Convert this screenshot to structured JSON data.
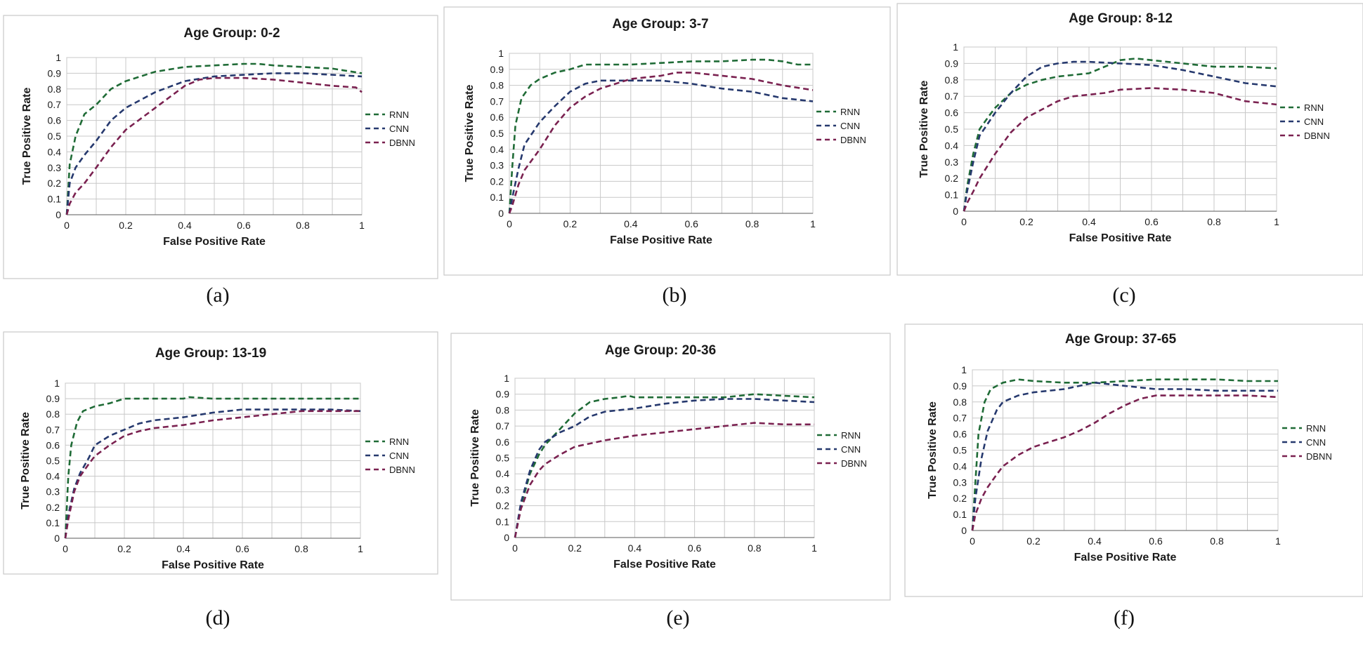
{
  "series_colors": {
    "RNN": "#1f6b36",
    "CNN": "#26396e",
    "DBNN": "#7a2150"
  },
  "chart_data": [
    {
      "type": "line",
      "caption": "(a)",
      "title": "Age Group: 0-2",
      "xlabel": "False Positive Rate",
      "ylabel": "True Positive Rate",
      "xlim": [
        0,
        1
      ],
      "ylim": [
        0,
        1
      ],
      "xticks": [
        "0",
        "0.2",
        "0.4",
        "0.6",
        "0.8",
        "1"
      ],
      "yticks": [
        "0",
        "0.1",
        "0.2",
        "0.3",
        "0.4",
        "0.5",
        "0.6",
        "0.7",
        "0.8",
        "0.9",
        "1"
      ],
      "grid": true,
      "legend": "right",
      "series": [
        {
          "name": "RNN",
          "x": [
            0,
            0.01,
            0.03,
            0.06,
            0.1,
            0.15,
            0.2,
            0.3,
            0.4,
            0.5,
            0.6,
            0.65,
            0.7,
            0.8,
            0.9,
            1.0
          ],
          "y": [
            0,
            0.32,
            0.5,
            0.64,
            0.7,
            0.8,
            0.85,
            0.91,
            0.94,
            0.95,
            0.96,
            0.96,
            0.95,
            0.94,
            0.93,
            0.9
          ]
        },
        {
          "name": "CNN",
          "x": [
            0,
            0.01,
            0.03,
            0.06,
            0.1,
            0.15,
            0.2,
            0.3,
            0.4,
            0.5,
            0.6,
            0.7,
            0.8,
            0.9,
            1.0
          ],
          "y": [
            0,
            0.2,
            0.3,
            0.38,
            0.47,
            0.6,
            0.68,
            0.78,
            0.85,
            0.88,
            0.89,
            0.9,
            0.9,
            0.89,
            0.88
          ]
        },
        {
          "name": "DBNN",
          "x": [
            0,
            0.01,
            0.03,
            0.06,
            0.1,
            0.15,
            0.2,
            0.3,
            0.4,
            0.45,
            0.5,
            0.6,
            0.7,
            0.8,
            0.9,
            0.98,
            1.0
          ],
          "y": [
            0,
            0.07,
            0.14,
            0.2,
            0.3,
            0.43,
            0.54,
            0.68,
            0.82,
            0.86,
            0.87,
            0.87,
            0.86,
            0.84,
            0.82,
            0.81,
            0.78
          ]
        }
      ]
    },
    {
      "type": "line",
      "caption": "(b)",
      "title": "Age Group: 3-7",
      "xlabel": "False Positive Rate",
      "ylabel": "True Positive Rate",
      "xlim": [
        0,
        1
      ],
      "ylim": [
        0,
        1
      ],
      "xticks": [
        "0",
        "0.2",
        "0.4",
        "0.6",
        "0.8",
        "1"
      ],
      "yticks": [
        "0",
        "0.1",
        "0.2",
        "0.3",
        "0.4",
        "0.5",
        "0.6",
        "0.7",
        "0.8",
        "0.9",
        "1"
      ],
      "grid": true,
      "legend": "right",
      "series": [
        {
          "name": "RNN",
          "x": [
            0,
            0.01,
            0.02,
            0.04,
            0.07,
            0.1,
            0.15,
            0.2,
            0.25,
            0.3,
            0.4,
            0.5,
            0.6,
            0.7,
            0.8,
            0.85,
            0.9,
            0.95,
            1.0
          ],
          "y": [
            0,
            0.3,
            0.55,
            0.72,
            0.8,
            0.84,
            0.88,
            0.9,
            0.93,
            0.93,
            0.93,
            0.94,
            0.95,
            0.95,
            0.96,
            0.96,
            0.95,
            0.93,
            0.93
          ]
        },
        {
          "name": "CNN",
          "x": [
            0,
            0.01,
            0.03,
            0.05,
            0.1,
            0.15,
            0.2,
            0.25,
            0.3,
            0.4,
            0.5,
            0.6,
            0.7,
            0.8,
            0.9,
            1.0
          ],
          "y": [
            0,
            0.1,
            0.28,
            0.43,
            0.57,
            0.67,
            0.76,
            0.81,
            0.83,
            0.83,
            0.83,
            0.81,
            0.78,
            0.76,
            0.72,
            0.7
          ]
        },
        {
          "name": "DBNN",
          "x": [
            0,
            0.01,
            0.03,
            0.05,
            0.1,
            0.15,
            0.2,
            0.25,
            0.3,
            0.4,
            0.5,
            0.55,
            0.6,
            0.7,
            0.8,
            0.9,
            1.0
          ],
          "y": [
            0,
            0.05,
            0.18,
            0.27,
            0.4,
            0.55,
            0.66,
            0.73,
            0.78,
            0.84,
            0.86,
            0.88,
            0.88,
            0.86,
            0.84,
            0.8,
            0.77
          ]
        }
      ]
    },
    {
      "type": "line",
      "caption": "(c)",
      "title": "Age Group: 8-12",
      "xlabel": "False Positive Rate",
      "ylabel": "True Positive Rate",
      "xlim": [
        0,
        1
      ],
      "ylim": [
        0,
        1
      ],
      "xticks": [
        "0",
        "0.2",
        "0.4",
        "0.6",
        "0.8",
        "1"
      ],
      "yticks": [
        "0",
        "0.1",
        "0.2",
        "0.3",
        "0.4",
        "0.5",
        "0.6",
        "0.7",
        "0.8",
        "0.9",
        "1"
      ],
      "grid": true,
      "legend": "right",
      "series": [
        {
          "name": "RNN",
          "x": [
            0,
            0.01,
            0.03,
            0.05,
            0.08,
            0.1,
            0.15,
            0.2,
            0.25,
            0.3,
            0.4,
            0.45,
            0.5,
            0.55,
            0.6,
            0.7,
            0.8,
            0.9,
            1.0
          ],
          "y": [
            0,
            0.15,
            0.35,
            0.5,
            0.58,
            0.63,
            0.72,
            0.77,
            0.8,
            0.82,
            0.84,
            0.88,
            0.92,
            0.93,
            0.92,
            0.9,
            0.88,
            0.88,
            0.87
          ]
        },
        {
          "name": "CNN",
          "x": [
            0,
            0.01,
            0.03,
            0.05,
            0.1,
            0.15,
            0.2,
            0.25,
            0.3,
            0.35,
            0.4,
            0.5,
            0.6,
            0.7,
            0.8,
            0.9,
            1.0
          ],
          "y": [
            0,
            0.12,
            0.3,
            0.46,
            0.6,
            0.72,
            0.82,
            0.88,
            0.9,
            0.91,
            0.91,
            0.9,
            0.89,
            0.86,
            0.82,
            0.78,
            0.76
          ]
        },
        {
          "name": "DBNN",
          "x": [
            0,
            0.01,
            0.03,
            0.05,
            0.1,
            0.15,
            0.2,
            0.25,
            0.3,
            0.35,
            0.4,
            0.45,
            0.5,
            0.6,
            0.7,
            0.8,
            0.9,
            1.0
          ],
          "y": [
            0,
            0.05,
            0.12,
            0.2,
            0.35,
            0.48,
            0.57,
            0.62,
            0.67,
            0.7,
            0.71,
            0.72,
            0.74,
            0.75,
            0.74,
            0.72,
            0.67,
            0.65
          ]
        }
      ]
    },
    {
      "type": "line",
      "caption": "(d)",
      "title": "Age Group: 13-19",
      "xlabel": "False Positive Rate",
      "ylabel": "True Positive Rate",
      "xlim": [
        0,
        1
      ],
      "ylim": [
        0,
        1
      ],
      "xticks": [
        "0",
        "0.2",
        "0.4",
        "0.6",
        "0.8",
        "1"
      ],
      "yticks": [
        "0",
        "0.1",
        "0.2",
        "0.3",
        "0.4",
        "0.5",
        "0.6",
        "0.7",
        "0.8",
        "0.9",
        "1"
      ],
      "grid": true,
      "legend": "right",
      "series": [
        {
          "name": "RNN",
          "x": [
            0,
            0.01,
            0.02,
            0.04,
            0.06,
            0.1,
            0.15,
            0.2,
            0.25,
            0.3,
            0.4,
            0.42,
            0.5,
            0.6,
            0.7,
            0.8,
            0.9,
            1.0
          ],
          "y": [
            0,
            0.4,
            0.6,
            0.75,
            0.82,
            0.85,
            0.87,
            0.9,
            0.9,
            0.9,
            0.9,
            0.91,
            0.9,
            0.9,
            0.9,
            0.9,
            0.9,
            0.9
          ]
        },
        {
          "name": "CNN",
          "x": [
            0,
            0.01,
            0.03,
            0.05,
            0.08,
            0.1,
            0.15,
            0.2,
            0.25,
            0.3,
            0.4,
            0.5,
            0.6,
            0.7,
            0.8,
            0.9,
            1.0
          ],
          "y": [
            0,
            0.15,
            0.32,
            0.42,
            0.52,
            0.6,
            0.66,
            0.7,
            0.74,
            0.76,
            0.78,
            0.81,
            0.83,
            0.83,
            0.83,
            0.83,
            0.82
          ]
        },
        {
          "name": "DBNN",
          "x": [
            0,
            0.01,
            0.03,
            0.05,
            0.08,
            0.1,
            0.15,
            0.2,
            0.25,
            0.3,
            0.4,
            0.5,
            0.6,
            0.7,
            0.8,
            0.9,
            1.0
          ],
          "y": [
            0,
            0.12,
            0.3,
            0.4,
            0.48,
            0.53,
            0.6,
            0.66,
            0.69,
            0.71,
            0.73,
            0.76,
            0.78,
            0.8,
            0.82,
            0.82,
            0.82
          ]
        }
      ]
    },
    {
      "type": "line",
      "caption": "(e)",
      "title": "Age Group: 20-36",
      "xlabel": "False Positive Rate",
      "ylabel": "True Positive Rate",
      "xlim": [
        0,
        1
      ],
      "ylim": [
        0,
        1
      ],
      "xticks": [
        "0",
        "0.2",
        "0.4",
        "0.6",
        "0.8",
        "1"
      ],
      "yticks": [
        "0",
        "0.1",
        "0.2",
        "0.3",
        "0.4",
        "0.5",
        "0.6",
        "0.7",
        "0.8",
        "0.9",
        "1"
      ],
      "grid": true,
      "legend": "right",
      "series": [
        {
          "name": "RNN",
          "x": [
            0,
            0.02,
            0.05,
            0.08,
            0.1,
            0.15,
            0.2,
            0.25,
            0.3,
            0.35,
            0.38,
            0.4,
            0.5,
            0.6,
            0.7,
            0.8,
            0.9,
            1.0
          ],
          "y": [
            0,
            0.2,
            0.4,
            0.52,
            0.58,
            0.68,
            0.78,
            0.85,
            0.87,
            0.88,
            0.89,
            0.88,
            0.88,
            0.88,
            0.88,
            0.9,
            0.89,
            0.88
          ]
        },
        {
          "name": "CNN",
          "x": [
            0,
            0.02,
            0.05,
            0.08,
            0.1,
            0.15,
            0.2,
            0.25,
            0.3,
            0.4,
            0.5,
            0.6,
            0.7,
            0.8,
            0.9,
            1.0
          ],
          "y": [
            0,
            0.22,
            0.42,
            0.55,
            0.6,
            0.66,
            0.7,
            0.76,
            0.79,
            0.81,
            0.84,
            0.86,
            0.87,
            0.87,
            0.86,
            0.85
          ]
        },
        {
          "name": "DBNN",
          "x": [
            0,
            0.02,
            0.05,
            0.08,
            0.1,
            0.15,
            0.2,
            0.25,
            0.3,
            0.4,
            0.5,
            0.6,
            0.7,
            0.8,
            0.9,
            1.0
          ],
          "y": [
            0,
            0.18,
            0.33,
            0.42,
            0.46,
            0.52,
            0.57,
            0.59,
            0.61,
            0.64,
            0.66,
            0.68,
            0.7,
            0.72,
            0.71,
            0.71
          ]
        }
      ]
    },
    {
      "type": "line",
      "caption": "(f)",
      "title": "Age Group: 37-65",
      "xlabel": "False Positive Rate",
      "ylabel": "True Positive Rate",
      "xlim": [
        0,
        1
      ],
      "ylim": [
        0,
        1
      ],
      "xticks": [
        "0",
        "0.2",
        "0.4",
        "0.6",
        "0.8",
        "1"
      ],
      "yticks": [
        "0",
        "0.1",
        "0.2",
        "0.3",
        "0.4",
        "0.5",
        "0.6",
        "0.7",
        "0.8",
        "0.9",
        "1"
      ],
      "grid": true,
      "legend": "right",
      "series": [
        {
          "name": "RNN",
          "x": [
            0,
            0.01,
            0.02,
            0.04,
            0.06,
            0.1,
            0.15,
            0.2,
            0.3,
            0.4,
            0.5,
            0.6,
            0.7,
            0.8,
            0.9,
            1.0
          ],
          "y": [
            0,
            0.3,
            0.6,
            0.8,
            0.88,
            0.92,
            0.94,
            0.93,
            0.92,
            0.92,
            0.93,
            0.94,
            0.94,
            0.94,
            0.93,
            0.93
          ]
        },
        {
          "name": "CNN",
          "x": [
            0,
            0.01,
            0.03,
            0.05,
            0.08,
            0.1,
            0.15,
            0.2,
            0.3,
            0.4,
            0.5,
            0.6,
            0.7,
            0.8,
            0.9,
            1.0
          ],
          "y": [
            0,
            0.2,
            0.45,
            0.62,
            0.75,
            0.8,
            0.84,
            0.86,
            0.88,
            0.92,
            0.9,
            0.88,
            0.88,
            0.87,
            0.87,
            0.87
          ]
        },
        {
          "name": "DBNN",
          "x": [
            0,
            0.01,
            0.03,
            0.05,
            0.08,
            0.1,
            0.15,
            0.2,
            0.3,
            0.35,
            0.4,
            0.45,
            0.5,
            0.55,
            0.6,
            0.7,
            0.8,
            0.9,
            1.0
          ],
          "y": [
            0,
            0.1,
            0.2,
            0.27,
            0.35,
            0.4,
            0.47,
            0.52,
            0.58,
            0.62,
            0.67,
            0.73,
            0.78,
            0.82,
            0.84,
            0.84,
            0.84,
            0.84,
            0.83
          ]
        }
      ]
    }
  ]
}
